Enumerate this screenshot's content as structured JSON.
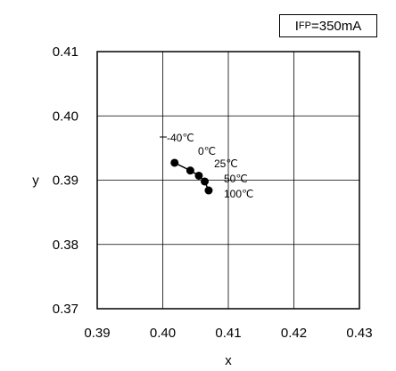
{
  "condition_box": {
    "prefix": "I",
    "sub": "FP",
    "suffix": "=350mA"
  },
  "chart_data": {
    "type": "line",
    "xlabel": "x",
    "ylabel": "y",
    "xlim": [
      0.39,
      0.43
    ],
    "ylim": [
      0.37,
      0.41
    ],
    "x_ticks": [
      "0.39",
      "0.40",
      "0.41",
      "0.42",
      "0.43"
    ],
    "y_ticks": [
      "0.37",
      "0.38",
      "0.39",
      "0.40",
      "0.41"
    ],
    "grid": true,
    "series": [
      {
        "points": [
          {
            "x": 0.4018,
            "y": 0.3927,
            "label": "-40℃"
          },
          {
            "x": 0.4042,
            "y": 0.3915,
            "label": "0℃"
          },
          {
            "x": 0.4055,
            "y": 0.3907,
            "label": "25℃"
          },
          {
            "x": 0.4064,
            "y": 0.3898,
            "label": "50℃"
          },
          {
            "x": 0.407,
            "y": 0.3884,
            "label": "100℃"
          }
        ]
      }
    ]
  }
}
